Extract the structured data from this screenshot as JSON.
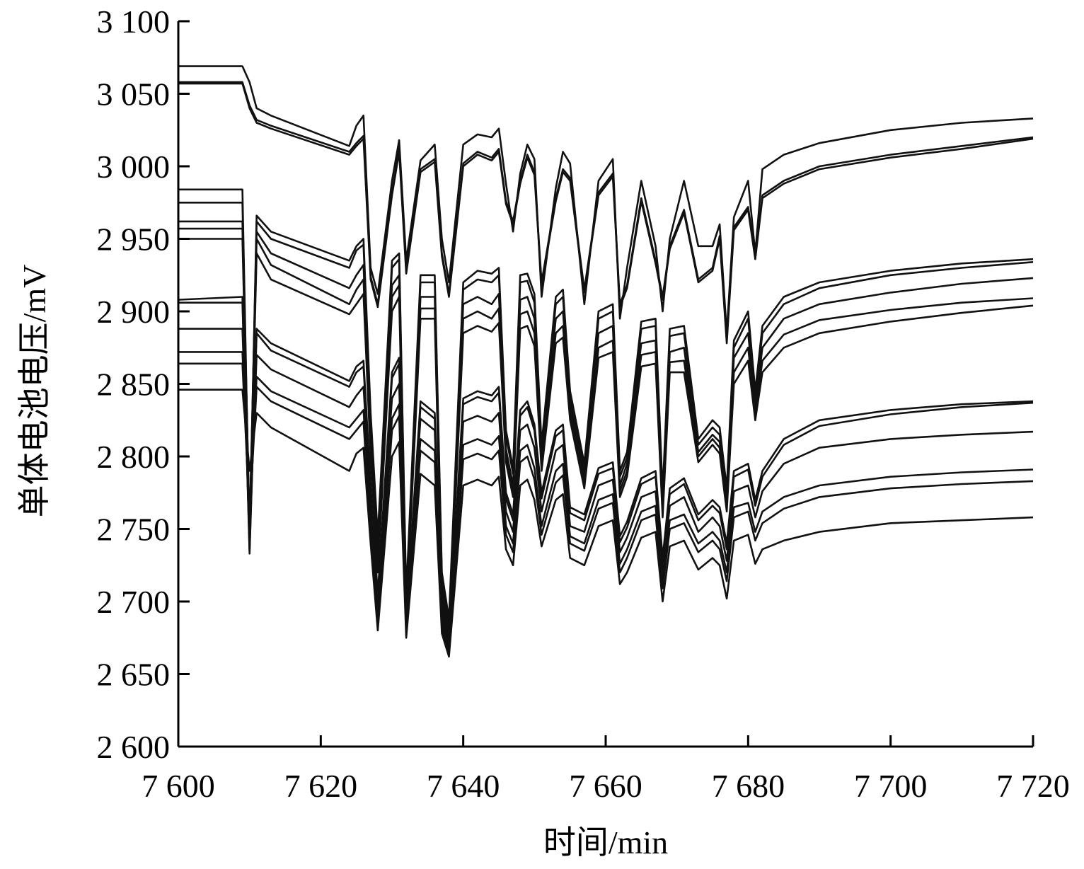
{
  "chart_data": {
    "type": "line",
    "title": "",
    "xlabel": "时间/min",
    "ylabel": "单体电池电压/mV",
    "xlim": [
      7600,
      7720
    ],
    "ylim": [
      2600,
      3100
    ],
    "x_ticks": [
      7600,
      7620,
      7640,
      7660,
      7680,
      7700,
      7720
    ],
    "x_tick_labels": [
      "7 600",
      "7 620",
      "7 640",
      "7 660",
      "7 680",
      "7 700",
      "7 720"
    ],
    "y_ticks": [
      2600,
      2650,
      2700,
      2750,
      2800,
      2850,
      2900,
      2950,
      3000,
      3050,
      3100
    ],
    "y_tick_labels": [
      "2 600",
      "2 650",
      "2 700",
      "2 750",
      "2 800",
      "2 850",
      "2 900",
      "2 950",
      "3 000",
      "3 050",
      "3 100"
    ],
    "grid": false,
    "legend": "none",
    "line_color": "#111111",
    "x": [
      7600,
      7609,
      7610,
      7611,
      7613,
      7624,
      7625,
      7626,
      7627,
      7628,
      7630,
      7631,
      7632,
      7634,
      7636,
      7637,
      7638,
      7640,
      7642,
      7644,
      7645,
      7646,
      7647,
      7648,
      7649,
      7650,
      7651,
      7653,
      7654,
      7655,
      7657,
      7659,
      7661,
      7662,
      7663,
      7665,
      7667,
      7668,
      7669,
      7671,
      7673,
      7675,
      7676,
      7677,
      7678,
      7680,
      7681,
      7682,
      7685,
      7690,
      7700,
      7710,
      7720
    ],
    "series": [
      {
        "values": [
          3069,
          3069,
          3058,
          3040,
          3035,
          3014,
          3028,
          3035,
          2930,
          2912,
          2990,
          3018,
          2935,
          3004,
          3015,
          2950,
          2920,
          3015,
          3022,
          3020,
          3026,
          2988,
          2955,
          2995,
          3015,
          3005,
          2910,
          2985,
          3010,
          3002,
          2905,
          2990,
          3005,
          2895,
          2930,
          2990,
          2945,
          2900,
          2950,
          2990,
          2945,
          2945,
          2960,
          2885,
          2965,
          2990,
          2940,
          2998,
          3008,
          3016,
          3025,
          3030,
          3033
        ]
      },
      {
        "values": [
          3058,
          3058,
          3042,
          3032,
          3028,
          3010,
          3016,
          3021,
          2924,
          2905,
          2982,
          3012,
          2928,
          2998,
          3005,
          2940,
          2912,
          3002,
          3010,
          3006,
          3012,
          2976,
          2962,
          2990,
          3008,
          2996,
          2920,
          2978,
          2998,
          2992,
          2915,
          2982,
          2995,
          2905,
          2918,
          2978,
          2935,
          2910,
          2945,
          2970,
          2922,
          2930,
          2952,
          2880,
          2958,
          2972,
          2938,
          2980,
          2990,
          3000,
          3008,
          3014,
          3020
        ]
      },
      {
        "values": [
          3057,
          3057,
          3040,
          3030,
          3026,
          3008,
          3014,
          3019,
          2922,
          2903,
          2980,
          3010,
          2926,
          2996,
          3003,
          2938,
          2910,
          3000,
          3008,
          3004,
          3010,
          2974,
          2960,
          2988,
          3006,
          2994,
          2918,
          2976,
          2996,
          2990,
          2913,
          2980,
          2993,
          2903,
          2916,
          2976,
          2933,
          2908,
          2943,
          2968,
          2920,
          2928,
          2950,
          2878,
          2956,
          2970,
          2936,
          2978,
          2988,
          2998,
          3006,
          3012,
          3019
        ]
      },
      {
        "values": [
          2984,
          2984,
          2740,
          2966,
          2955,
          2935,
          2945,
          2950,
          2830,
          2745,
          2935,
          2940,
          2705,
          2925,
          2925,
          2720,
          2688,
          2920,
          2928,
          2926,
          2930,
          2818,
          2792,
          2925,
          2926,
          2912,
          2808,
          2910,
          2915,
          2845,
          2795,
          2900,
          2905,
          2790,
          2803,
          2893,
          2895,
          2775,
          2888,
          2890,
          2812,
          2825,
          2820,
          2778,
          2880,
          2900,
          2845,
          2890,
          2910,
          2920,
          2928,
          2933,
          2936
        ]
      },
      {
        "values": [
          2975,
          2975,
          2738,
          2962,
          2950,
          2930,
          2942,
          2946,
          2826,
          2740,
          2930,
          2936,
          2700,
          2920,
          2920,
          2715,
          2684,
          2915,
          2922,
          2920,
          2925,
          2814,
          2788,
          2920,
          2921,
          2906,
          2804,
          2905,
          2910,
          2840,
          2790,
          2895,
          2900,
          2786,
          2799,
          2888,
          2890,
          2770,
          2883,
          2885,
          2808,
          2820,
          2815,
          2774,
          2875,
          2895,
          2840,
          2885,
          2905,
          2916,
          2925,
          2930,
          2934
        ]
      },
      {
        "values": [
          2962,
          2962,
          2750,
          2955,
          2940,
          2916,
          2925,
          2932,
          2815,
          2730,
          2918,
          2925,
          2695,
          2910,
          2910,
          2710,
          2680,
          2905,
          2910,
          2905,
          2912,
          2805,
          2780,
          2908,
          2910,
          2895,
          2798,
          2895,
          2900,
          2835,
          2785,
          2885,
          2890,
          2780,
          2795,
          2878,
          2880,
          2765,
          2872,
          2875,
          2803,
          2815,
          2810,
          2770,
          2868,
          2885,
          2835,
          2875,
          2895,
          2905,
          2913,
          2919,
          2923
        ]
      },
      {
        "values": [
          2957,
          2957,
          2748,
          2950,
          2932,
          2905,
          2915,
          2922,
          2808,
          2725,
          2910,
          2918,
          2692,
          2902,
          2902,
          2705,
          2678,
          2895,
          2900,
          2895,
          2902,
          2800,
          2776,
          2898,
          2900,
          2885,
          2795,
          2885,
          2890,
          2830,
          2782,
          2875,
          2880,
          2776,
          2790,
          2870,
          2872,
          2762,
          2865,
          2866,
          2800,
          2812,
          2806,
          2766,
          2858,
          2875,
          2830,
          2866,
          2884,
          2894,
          2901,
          2906,
          2909
        ]
      },
      {
        "values": [
          2950,
          2950,
          2746,
          2940,
          2922,
          2898,
          2905,
          2912,
          2800,
          2720,
          2900,
          2910,
          2690,
          2895,
          2895,
          2700,
          2675,
          2885,
          2890,
          2886,
          2892,
          2796,
          2772,
          2888,
          2890,
          2876,
          2790,
          2878,
          2882,
          2825,
          2778,
          2868,
          2872,
          2772,
          2786,
          2862,
          2864,
          2758,
          2858,
          2858,
          2796,
          2808,
          2802,
          2762,
          2850,
          2866,
          2825,
          2858,
          2875,
          2885,
          2893,
          2899,
          2904
        ]
      },
      {
        "values": [
          2908,
          2910,
          2735,
          2888,
          2878,
          2852,
          2862,
          2866,
          2780,
          2705,
          2858,
          2868,
          2688,
          2838,
          2830,
          2695,
          2672,
          2840,
          2845,
          2842,
          2848,
          2775,
          2760,
          2832,
          2838,
          2822,
          2775,
          2818,
          2822,
          2765,
          2760,
          2792,
          2796,
          2745,
          2755,
          2785,
          2790,
          2730,
          2778,
          2785,
          2760,
          2770,
          2765,
          2740,
          2790,
          2795,
          2770,
          2790,
          2812,
          2825,
          2832,
          2836,
          2838
        ]
      },
      {
        "values": [
          2906,
          2906,
          2733,
          2885,
          2873,
          2848,
          2858,
          2862,
          2776,
          2702,
          2854,
          2864,
          2685,
          2834,
          2826,
          2692,
          2670,
          2836,
          2841,
          2838,
          2844,
          2771,
          2756,
          2828,
          2834,
          2818,
          2771,
          2814,
          2818,
          2761,
          2756,
          2788,
          2792,
          2741,
          2751,
          2781,
          2786,
          2726,
          2774,
          2781,
          2756,
          2766,
          2761,
          2736,
          2786,
          2791,
          2766,
          2786,
          2808,
          2821,
          2829,
          2834,
          2837
        ]
      },
      {
        "values": [
          2888,
          2888,
          2745,
          2870,
          2860,
          2834,
          2842,
          2848,
          2768,
          2698,
          2840,
          2850,
          2684,
          2826,
          2818,
          2690,
          2668,
          2824,
          2828,
          2824,
          2830,
          2762,
          2748,
          2818,
          2822,
          2806,
          2762,
          2804,
          2808,
          2752,
          2748,
          2780,
          2784,
          2734,
          2744,
          2772,
          2776,
          2720,
          2766,
          2772,
          2748,
          2758,
          2752,
          2728,
          2776,
          2780,
          2758,
          2776,
          2795,
          2806,
          2812,
          2815,
          2817
        ]
      },
      {
        "values": [
          2872,
          2872,
          2760,
          2855,
          2845,
          2820,
          2826,
          2832,
          2755,
          2690,
          2826,
          2836,
          2680,
          2812,
          2804,
          2686,
          2666,
          2808,
          2812,
          2808,
          2814,
          2752,
          2740,
          2804,
          2808,
          2792,
          2752,
          2790,
          2795,
          2745,
          2740,
          2770,
          2774,
          2726,
          2736,
          2762,
          2766,
          2714,
          2756,
          2760,
          2740,
          2748,
          2742,
          2720,
          2765,
          2768,
          2748,
          2762,
          2772,
          2780,
          2786,
          2789,
          2791
        ]
      },
      {
        "values": [
          2864,
          2864,
          2758,
          2848,
          2838,
          2812,
          2818,
          2824,
          2748,
          2685,
          2818,
          2828,
          2678,
          2804,
          2796,
          2682,
          2664,
          2798,
          2802,
          2798,
          2804,
          2746,
          2734,
          2796,
          2800,
          2784,
          2746,
          2782,
          2787,
          2740,
          2735,
          2764,
          2768,
          2720,
          2730,
          2756,
          2760,
          2709,
          2750,
          2754,
          2734,
          2742,
          2736,
          2714,
          2758,
          2762,
          2742,
          2754,
          2764,
          2772,
          2778,
          2781,
          2783
        ]
      },
      {
        "values": [
          2846,
          2846,
          2790,
          2830,
          2820,
          2790,
          2802,
          2806,
          2740,
          2680,
          2800,
          2810,
          2675,
          2788,
          2780,
          2678,
          2662,
          2780,
          2784,
          2780,
          2786,
          2736,
          2725,
          2780,
          2784,
          2770,
          2738,
          2770,
          2774,
          2730,
          2725,
          2752,
          2756,
          2712,
          2720,
          2744,
          2748,
          2700,
          2738,
          2742,
          2722,
          2730,
          2725,
          2702,
          2742,
          2746,
          2726,
          2736,
          2742,
          2748,
          2754,
          2756,
          2758
        ]
      }
    ]
  }
}
